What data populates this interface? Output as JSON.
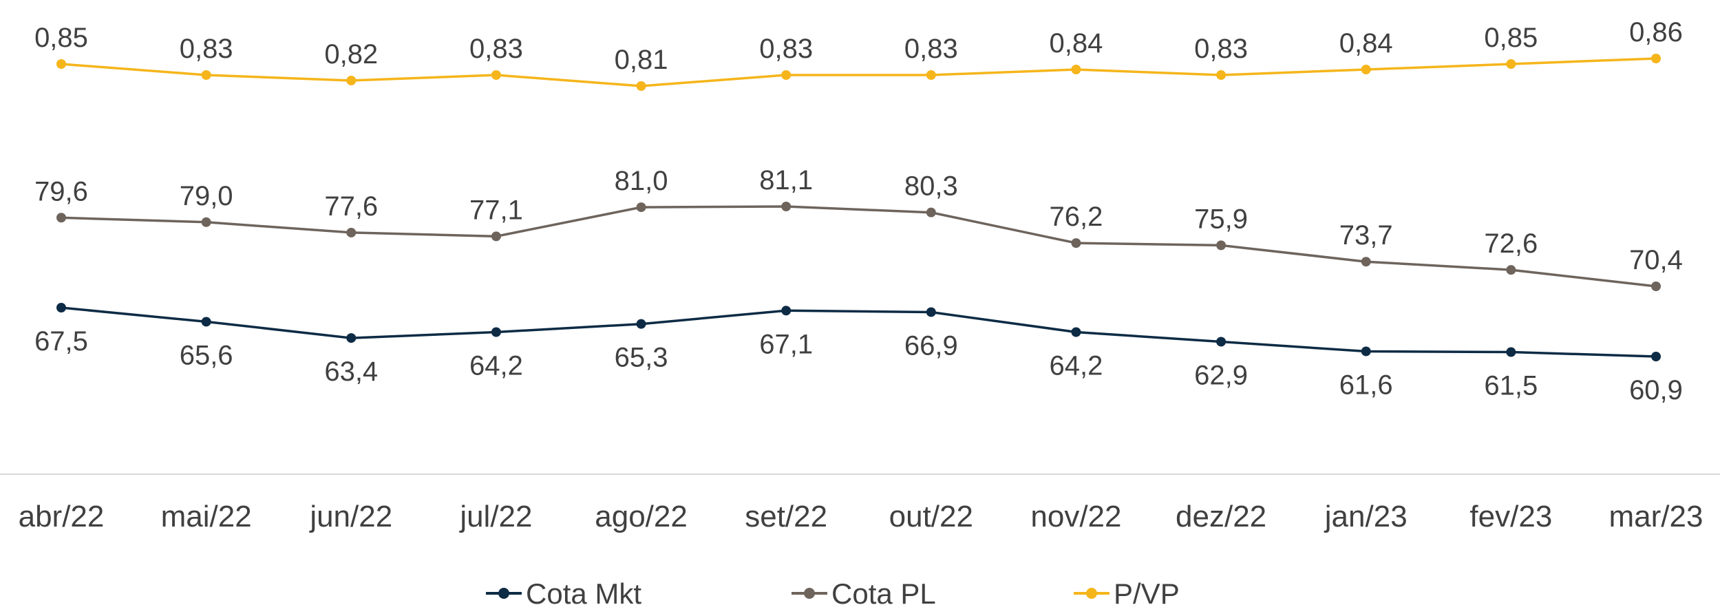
{
  "chart_data": {
    "type": "line",
    "categories": [
      "abr/22",
      "mai/22",
      "jun/22",
      "jul/22",
      "ago/22",
      "set/22",
      "out/22",
      "nov/22",
      "dez/22",
      "jan/23",
      "fev/23",
      "mar/23"
    ],
    "series": [
      {
        "name": "Cota Mkt",
        "color": "#0d2b45",
        "values": [
          67.5,
          65.6,
          63.4,
          64.2,
          65.3,
          67.1,
          66.9,
          64.2,
          62.9,
          61.6,
          61.5,
          60.9
        ],
        "labels": [
          "67,5",
          "65,6",
          "63,4",
          "64,2",
          "65,3",
          "67,1",
          "66,9",
          "64,2",
          "62,9",
          "61,6",
          "61,5",
          "60,9"
        ],
        "label_position": "below"
      },
      {
        "name": "Cota PL",
        "color": "#6e645c",
        "values": [
          79.6,
          79.0,
          77.6,
          77.1,
          81.0,
          81.1,
          80.3,
          76.2,
          75.9,
          73.7,
          72.6,
          70.4
        ],
        "labels": [
          "79,6",
          "79,0",
          "77,6",
          "77,1",
          "81,0",
          "81,1",
          "80,3",
          "76,2",
          "75,9",
          "73,7",
          "72,6",
          "70,4"
        ],
        "label_position": "above"
      },
      {
        "name": "P/VP",
        "color": "#f5b51b",
        "values": [
          0.85,
          0.83,
          0.82,
          0.83,
          0.81,
          0.83,
          0.83,
          0.84,
          0.83,
          0.84,
          0.85,
          0.86
        ],
        "labels": [
          "0,85",
          "0,83",
          "0,82",
          "0,83",
          "0,81",
          "0,83",
          "0,83",
          "0,84",
          "0,83",
          "0,84",
          "0,85",
          "0,86"
        ],
        "label_position": "above"
      }
    ],
    "legend_position": "bottom",
    "grid": false,
    "axis_line_color": "#d9d9d9"
  }
}
